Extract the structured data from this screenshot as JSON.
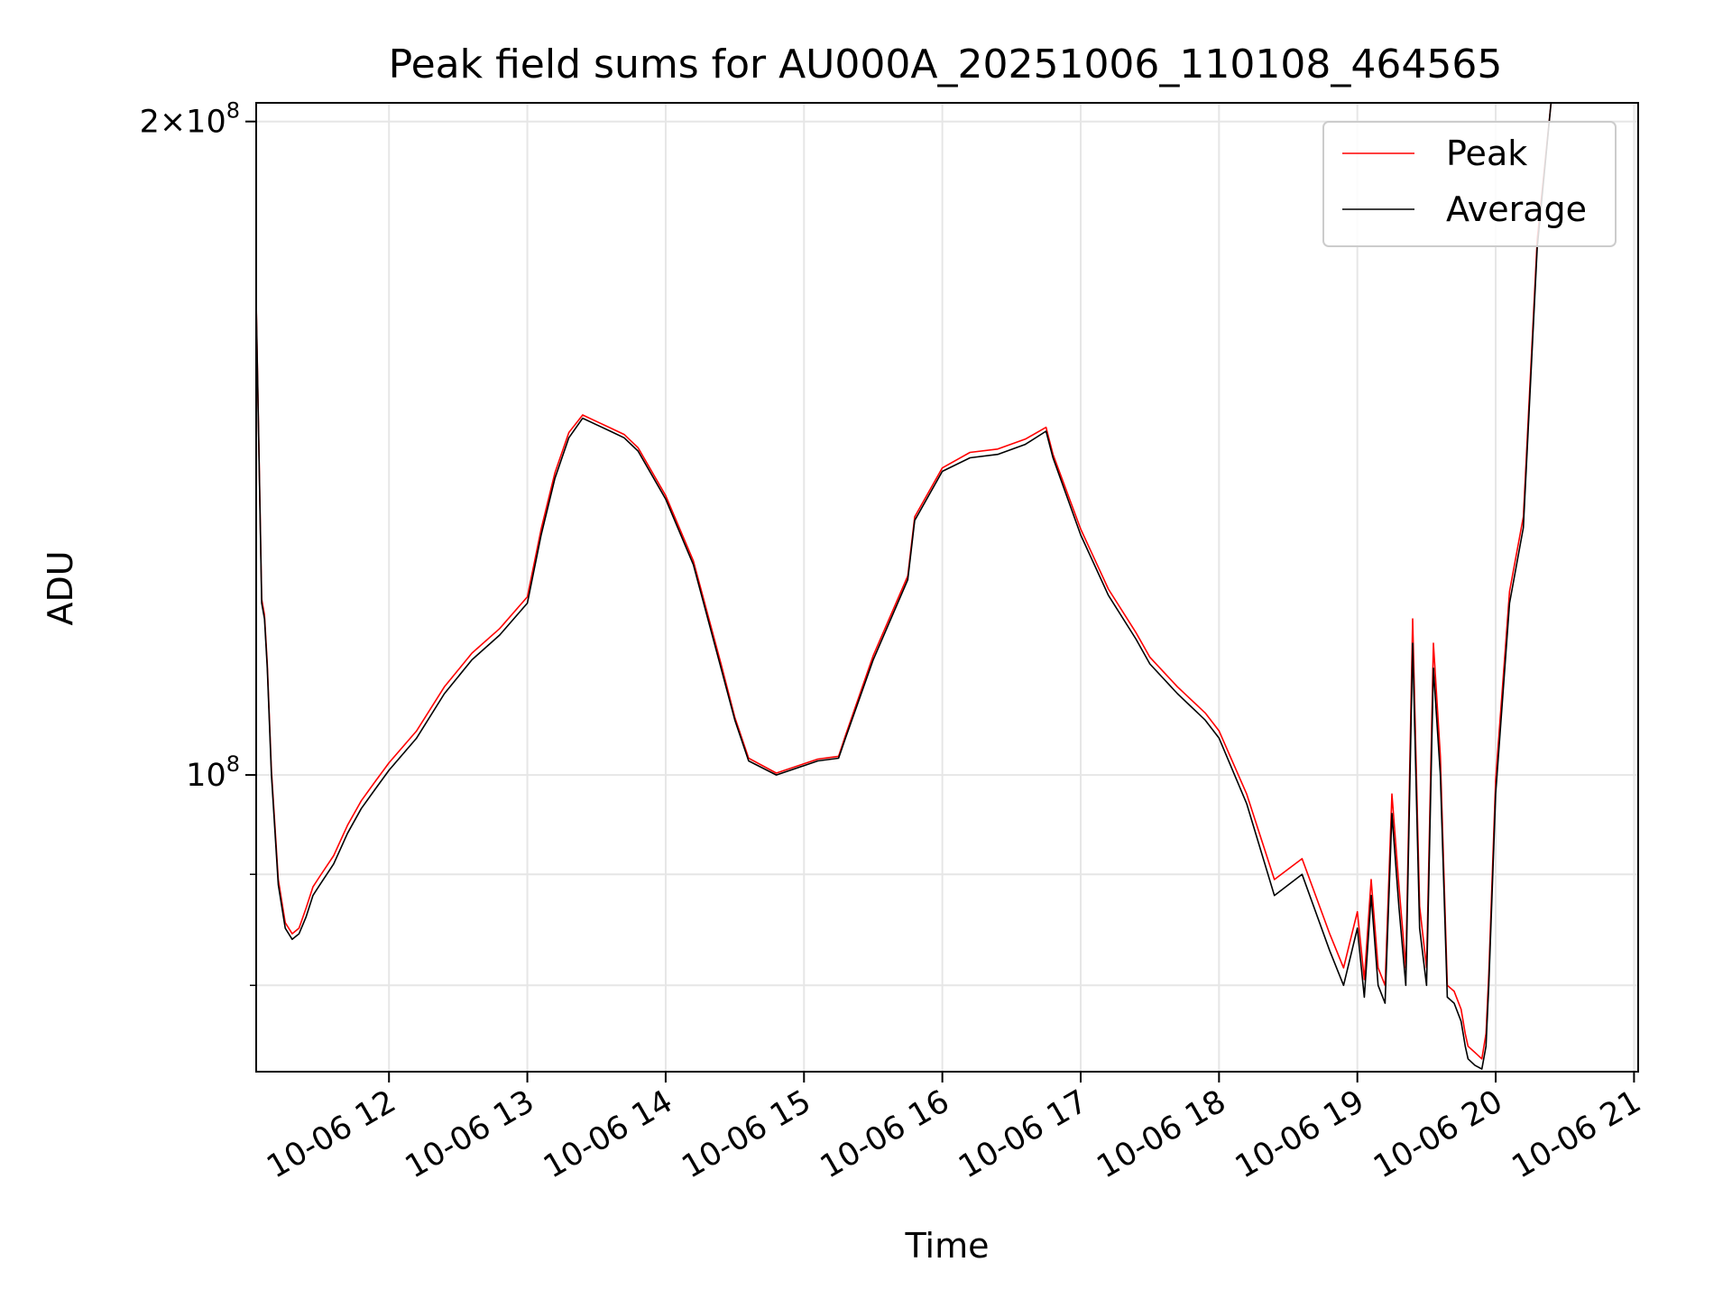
{
  "chart_data": {
    "type": "line",
    "title": "Peak field sums for AU000A_20251006_110108_464565",
    "xlabel": "Time",
    "ylabel": "ADU",
    "yscale": "log",
    "xlim": [
      11.04,
      21.03
    ],
    "ylim": [
      73000000,
      204000000
    ],
    "grid": true,
    "legend": {
      "placement": "top-right",
      "entries": [
        "Peak",
        "Average"
      ]
    },
    "colors": {
      "Peak": "#ff0000",
      "Average": "#000000",
      "grid": "#e6e6e6"
    },
    "x_ticks": [
      {
        "value": 12,
        "label": "10-06 12"
      },
      {
        "value": 13,
        "label": "10-06 13"
      },
      {
        "value": 14,
        "label": "10-06 14"
      },
      {
        "value": 15,
        "label": "10-06 15"
      },
      {
        "value": 16,
        "label": "10-06 16"
      },
      {
        "value": 17,
        "label": "10-06 17"
      },
      {
        "value": 18,
        "label": "10-06 18"
      },
      {
        "value": 19,
        "label": "10-06 19"
      },
      {
        "value": 20,
        "label": "10-06 20"
      },
      {
        "value": 21,
        "label": "10-06 21"
      }
    ],
    "y_ticks_major": [
      {
        "value": 100000000,
        "base": "10",
        "exp": "8"
      },
      {
        "value": 200000000,
        "base": "2×10",
        "exp": "8"
      }
    ],
    "y_ticks_minor": [
      80000000,
      90000000
    ],
    "series": [
      {
        "name": "Average",
        "x": [
          11.04,
          11.08,
          11.1,
          11.12,
          11.15,
          11.2,
          11.25,
          11.3,
          11.35,
          11.4,
          11.45,
          11.5,
          11.6,
          11.7,
          11.8,
          11.9,
          12.0,
          12.2,
          12.4,
          12.6,
          12.8,
          13.0,
          13.1,
          13.2,
          13.3,
          13.4,
          13.5,
          13.6,
          13.7,
          13.8,
          14.0,
          14.2,
          14.4,
          14.5,
          14.6,
          14.8,
          15.0,
          15.1,
          15.2,
          15.25,
          15.3,
          15.5,
          15.75,
          15.8,
          16.0,
          16.2,
          16.4,
          16.6,
          16.75,
          16.8,
          17.0,
          17.2,
          17.4,
          17.5,
          17.7,
          17.9,
          18.0,
          18.2,
          18.4,
          18.6,
          18.8,
          18.9,
          19.0,
          19.05,
          19.1,
          19.15,
          19.2,
          19.25,
          19.3,
          19.35,
          19.4,
          19.45,
          19.5,
          19.55,
          19.6,
          19.65,
          19.7,
          19.75,
          19.78,
          19.8,
          19.85,
          19.9,
          19.93,
          19.95,
          20.0,
          20.1,
          20.2,
          20.3,
          20.4,
          20.5,
          20.6,
          20.65,
          20.7,
          20.75,
          20.8,
          20.85,
          20.9,
          20.95,
          21.0,
          21.03
        ],
        "values": [
          165000000,
          120000000,
          118000000,
          112000000,
          100000000,
          89000000,
          85000000,
          84000000,
          84500000,
          86000000,
          88000000,
          89000000,
          91000000,
          94000000,
          96500000,
          98500000,
          100500000,
          104000000,
          109000000,
          113000000,
          116000000,
          120000000,
          129000000,
          137000000,
          143000000,
          146000000,
          145000000,
          144000000,
          143000000,
          141000000,
          134000000,
          125000000,
          112000000,
          106000000,
          101500000,
          100000000,
          101000000,
          101500000,
          101700000,
          101800000,
          104000000,
          113000000,
          123000000,
          131000000,
          138000000,
          140000000,
          140500000,
          142000000,
          144000000,
          140000000,
          129000000,
          121000000,
          115500000,
          112500000,
          109000000,
          106000000,
          104000000,
          97000000,
          88000000,
          90000000,
          83000000,
          80000000,
          85000000,
          79000000,
          88000000,
          80000000,
          78500000,
          96000000,
          87000000,
          80000000,
          115000000,
          85000000,
          80000000,
          112000000,
          100000000,
          79000000,
          78500000,
          77000000,
          75000000,
          74000000,
          73500000,
          73200000,
          75000000,
          80000000,
          98000000,
          120000000,
          130000000,
          175000000,
          204000000,
          204000000,
          204000000,
          204000000,
          204000000,
          204000000,
          204000000,
          204000000,
          204000000,
          204000000,
          204000000,
          204000000
        ]
      },
      {
        "name": "Peak",
        "x": [
          11.04,
          11.08,
          11.1,
          11.12,
          11.15,
          11.2,
          11.25,
          11.3,
          11.35,
          11.4,
          11.45,
          11.5,
          11.6,
          11.7,
          11.8,
          11.9,
          12.0,
          12.2,
          12.4,
          12.6,
          12.8,
          13.0,
          13.1,
          13.2,
          13.3,
          13.4,
          13.5,
          13.6,
          13.7,
          13.8,
          14.0,
          14.2,
          14.4,
          14.5,
          14.6,
          14.8,
          15.0,
          15.1,
          15.2,
          15.25,
          15.3,
          15.5,
          15.75,
          15.8,
          16.0,
          16.2,
          16.4,
          16.6,
          16.75,
          16.8,
          17.0,
          17.2,
          17.4,
          17.5,
          17.7,
          17.9,
          18.0,
          18.2,
          18.4,
          18.6,
          18.8,
          18.9,
          19.0,
          19.05,
          19.1,
          19.15,
          19.2,
          19.25,
          19.3,
          19.35,
          19.4,
          19.45,
          19.5,
          19.55,
          19.6,
          19.65,
          19.7,
          19.75,
          19.78,
          19.8,
          19.85,
          19.9,
          19.93,
          19.95,
          20.0,
          20.1,
          20.2,
          20.3,
          20.4,
          20.5,
          20.6,
          20.65,
          20.7,
          20.75,
          20.8,
          20.85,
          20.9,
          20.95,
          21.0,
          21.03
        ],
        "values": [
          165500000,
          120500000,
          118500000,
          112500000,
          100500000,
          89500000,
          85500000,
          84500000,
          85000000,
          86800000,
          88800000,
          89800000,
          91800000,
          94800000,
          97300000,
          99300000,
          101300000,
          104800000,
          109800000,
          113800000,
          116800000,
          120800000,
          129800000,
          137800000,
          143800000,
          146500000,
          145500000,
          144500000,
          143500000,
          141500000,
          134500000,
          125500000,
          112500000,
          106300000,
          101800000,
          100200000,
          101200000,
          101700000,
          101900000,
          102000000,
          104300000,
          113500000,
          123500000,
          131500000,
          138500000,
          140800000,
          141300000,
          142800000,
          144600000,
          140500000,
          129800000,
          121800000,
          116300000,
          113300000,
          109800000,
          106800000,
          104800000,
          98000000,
          89500000,
          91500000,
          84500000,
          81500000,
          86500000,
          80500000,
          89500000,
          81500000,
          80000000,
          98000000,
          89000000,
          81500000,
          118000000,
          87000000,
          81500000,
          115000000,
          102000000,
          80000000,
          79500000,
          78000000,
          76000000,
          75000000,
          74500000,
          74000000,
          76000000,
          81000000,
          99500000,
          121500000,
          131500000,
          176500000,
          204000000,
          204000000,
          204000000,
          204000000,
          204000000,
          204000000,
          204000000,
          204000000,
          204000000,
          204000000,
          204000000,
          204000000
        ]
      }
    ]
  }
}
